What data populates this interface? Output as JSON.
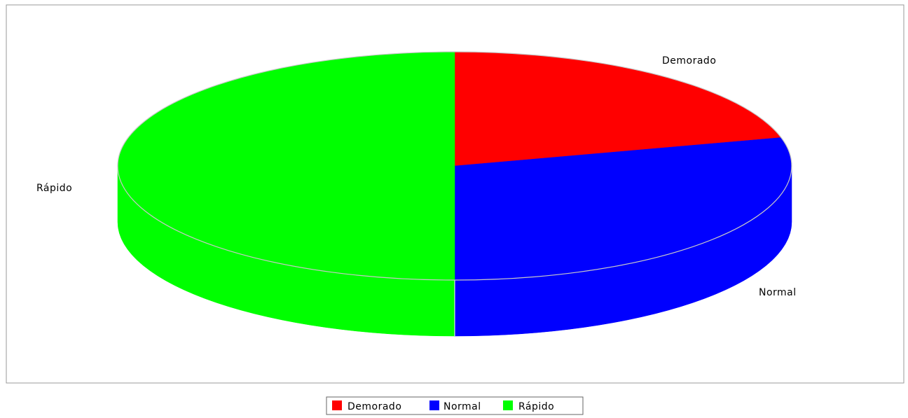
{
  "chart_data": {
    "type": "pie",
    "style": "3d",
    "title": "",
    "categories": [
      "Demorado",
      "Normal",
      "Rápido"
    ],
    "values": [
      21,
      29,
      50
    ],
    "colors": [
      "#ff0000",
      "#0000ff",
      "#00ff00"
    ],
    "legend": {
      "placement": "bottom-center",
      "entries": [
        "Demorado",
        "Normal",
        "Rápido"
      ]
    }
  }
}
